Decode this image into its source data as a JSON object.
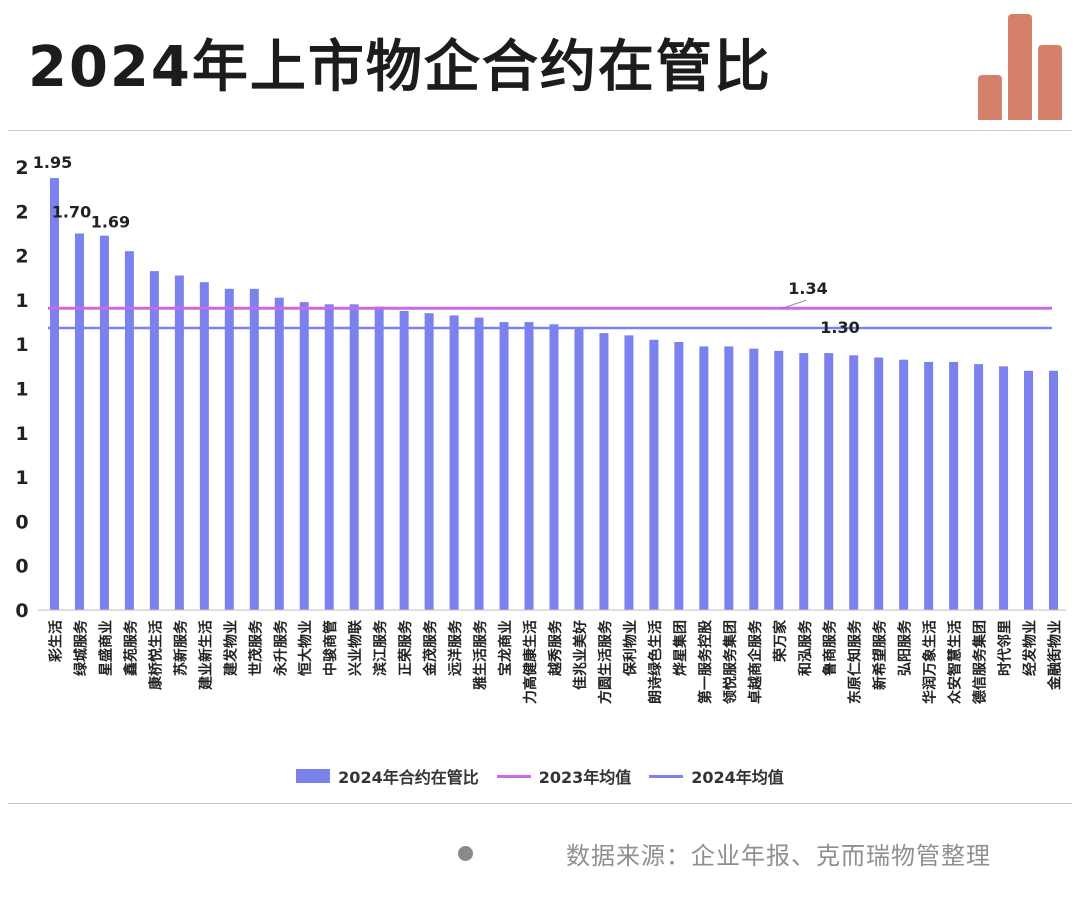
{
  "title": "2024年上市物企合约在管比",
  "source": "数据来源：企业年报、克而瑞物管整理",
  "colors": {
    "bar": "#7b82ee",
    "avg2023": "#c86be6",
    "avg2024": "#7b82ee",
    "logo": "#d4806a"
  },
  "legend": {
    "bar_label": "2024年合约在管比",
    "avg2023_label": "2023年均值",
    "avg2024_label": "2024年均值"
  },
  "chart_data": {
    "type": "bar",
    "title": "2024年上市物企合约在管比",
    "ylim": [
      0,
      2
    ],
    "y_tick_labels": [
      "0",
      "0",
      "0",
      "1",
      "1",
      "1",
      "1",
      "1",
      "2",
      "2",
      "2"
    ],
    "categories": [
      "彩生活",
      "绿城服务",
      "星盛商业",
      "鑫苑服务",
      "康桥悦生活",
      "苏新服务",
      "建业新生活",
      "建发物业",
      "世茂服务",
      "永升服务",
      "恒大物业",
      "中骏商管",
      "兴业物联",
      "滨江服务",
      "正荣服务",
      "金茂服务",
      "远洋服务",
      "雅生活服务",
      "宝龙商业",
      "力高健康生活",
      "越秀服务",
      "佳兆业美好",
      "方圆生活服务",
      "保利物业",
      "朗诗绿色生活",
      "烨星集团",
      "第一服务控股",
      "领悦服务集团",
      "卓越商企服务",
      "荣万家",
      "和泓服务",
      "鲁商服务",
      "东原仁知服务",
      "新希望服务",
      "弘阳服务",
      "华润万象生活",
      "众安智慧生活",
      "德信服务集团",
      "时代邻里",
      "经发物业",
      "金融街物业"
    ],
    "series": [
      {
        "name": "2024年合约在管比",
        "values": [
          1.95,
          1.7,
          1.69,
          1.62,
          1.53,
          1.51,
          1.48,
          1.45,
          1.45,
          1.41,
          1.39,
          1.38,
          1.38,
          1.37,
          1.35,
          1.34,
          1.33,
          1.32,
          1.3,
          1.3,
          1.29,
          1.27,
          1.25,
          1.24,
          1.22,
          1.21,
          1.19,
          1.19,
          1.18,
          1.17,
          1.16,
          1.16,
          1.15,
          1.14,
          1.13,
          1.12,
          1.12,
          1.11,
          1.1,
          1.08,
          1.08
        ]
      }
    ],
    "data_labels": [
      {
        "category": "彩生活",
        "text": "1.95"
      },
      {
        "category": "绿城服务",
        "text": "1.70"
      },
      {
        "category": "星盛商业",
        "text": "1.69"
      }
    ],
    "reference_lines": [
      {
        "name": "2023年均值",
        "value": 1.34,
        "label": "1.34"
      },
      {
        "name": "2024年均值",
        "value": 1.3,
        "label": "1.30"
      }
    ],
    "legend_position": "bottom",
    "grid": false
  }
}
